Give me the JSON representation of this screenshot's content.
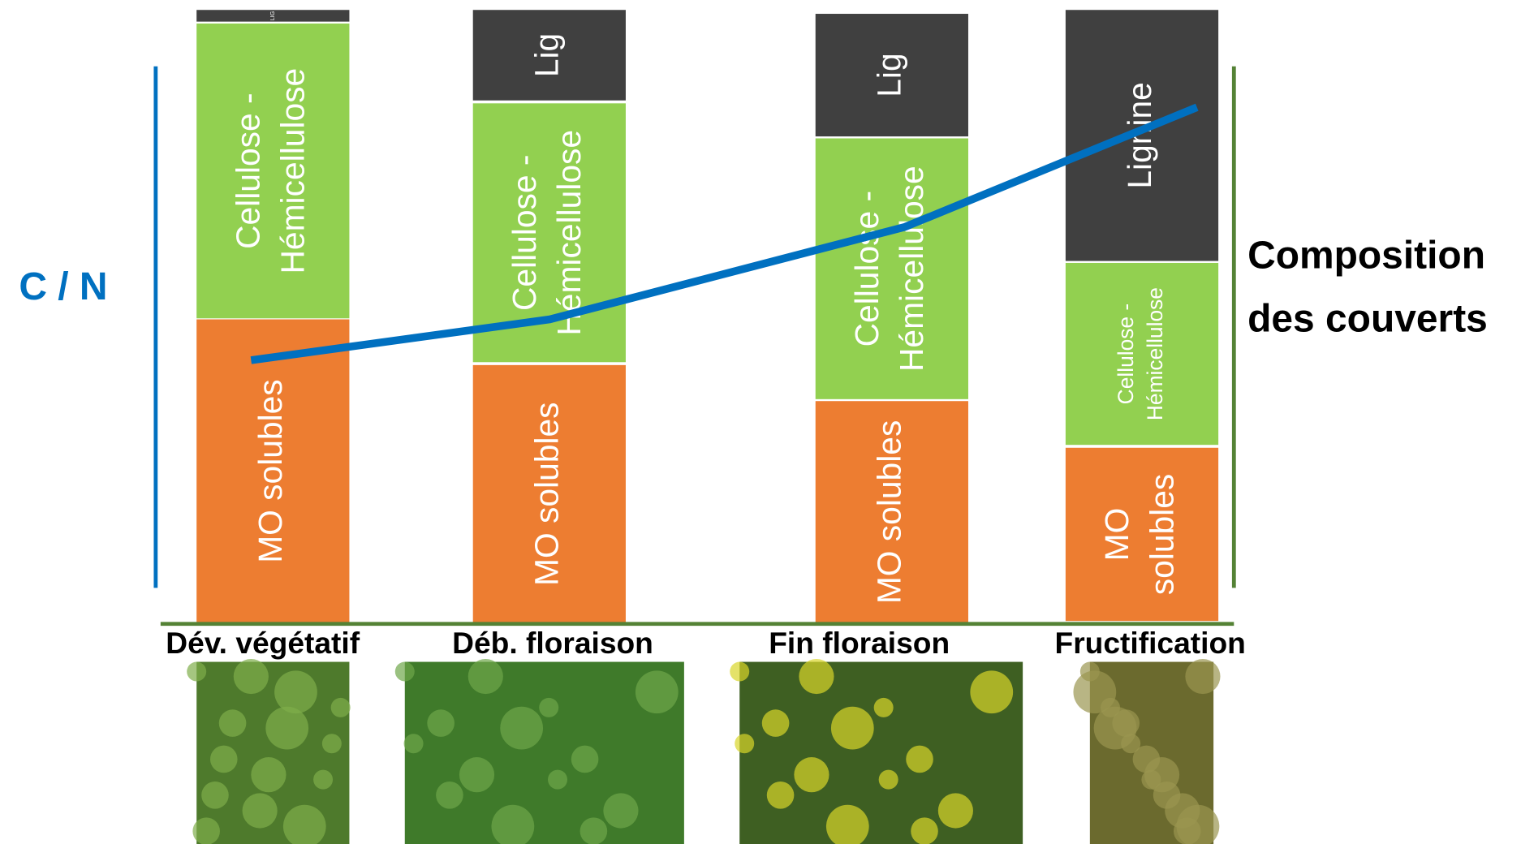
{
  "left_label": "C / N",
  "right_label": [
    "Composition",
    "des couverts"
  ],
  "stages": [
    {
      "label": "Dév. végétatif",
      "segments": [
        {
          "lines": [
            "MO solubles"
          ]
        },
        {
          "lines": [
            "Cellulose -",
            "Hémicellulose"
          ]
        },
        {
          "lines": [
            "LIG"
          ]
        }
      ]
    },
    {
      "label": "Déb. floraison",
      "segments": [
        {
          "lines": [
            "MO solubles"
          ]
        },
        {
          "lines": [
            "Cellulose -",
            "Hémicellulose"
          ]
        },
        {
          "lines": [
            "Lig"
          ]
        }
      ]
    },
    {
      "label": "Fin floraison",
      "segments": [
        {
          "lines": [
            "MO solubles"
          ]
        },
        {
          "lines": [
            "Cellulose -",
            "Hémicellulose"
          ]
        },
        {
          "lines": [
            "Lig"
          ]
        }
      ]
    },
    {
      "label": "Fructification",
      "segments": [
        {
          "lines": [
            "MO",
            "solubles"
          ]
        },
        {
          "lines": [
            "Cellulose -",
            "Hémicellulose"
          ]
        },
        {
          "lines": [
            "Lignine"
          ]
        }
      ]
    }
  ]
}
